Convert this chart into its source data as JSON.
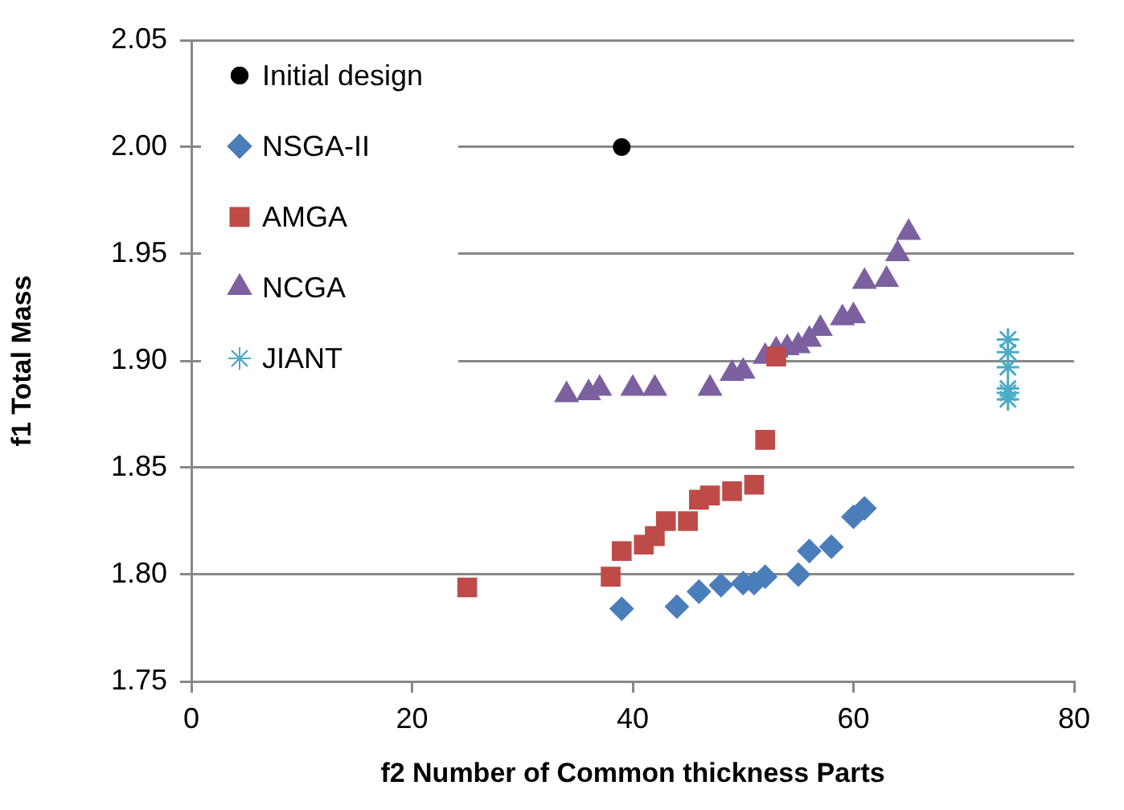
{
  "chart_data": {
    "type": "scatter",
    "xlabel": "f2 Number of Common thickness Parts",
    "ylabel": "f1 Total Mass",
    "xlim": [
      0,
      80
    ],
    "xticks": [
      0,
      20,
      40,
      60,
      80
    ],
    "ylim": [
      1.75,
      2.05
    ],
    "yticks": [
      {
        "value": 1.75,
        "label": "1.75"
      },
      {
        "value": 1.8,
        "label": "1.80"
      },
      {
        "value": 1.85,
        "label": "1.85"
      },
      {
        "value": 1.9,
        "label": "1.90"
      },
      {
        "value": 1.95,
        "label": "1.95"
      },
      {
        "value": 2.0,
        "label": "2.00"
      },
      {
        "value": 2.05,
        "label": "2.05"
      }
    ],
    "grid": "y",
    "legend": "top left",
    "series": [
      {
        "name": "Initial design",
        "color": "#000000",
        "marker": "circle",
        "x": [
          39
        ],
        "values": [
          2.0
        ]
      },
      {
        "name": "NSGA-II",
        "color": "#4a7ebb",
        "marker": "diamond",
        "x": [
          39,
          44,
          46,
          48,
          50,
          51,
          52,
          55,
          56,
          58,
          60,
          61
        ],
        "values": [
          1.784,
          1.785,
          1.792,
          1.795,
          1.796,
          1.796,
          1.799,
          1.8,
          1.811,
          1.813,
          1.827,
          1.831
        ]
      },
      {
        "name": "AMGA",
        "color": "#be4b48",
        "marker": "square",
        "x": [
          25,
          38,
          39,
          41,
          42,
          43,
          45,
          46,
          47,
          49,
          51,
          52,
          53
        ],
        "values": [
          1.794,
          1.799,
          1.811,
          1.814,
          1.818,
          1.825,
          1.825,
          1.835,
          1.837,
          1.839,
          1.842,
          1.863,
          1.902
        ]
      },
      {
        "name": "NCGA",
        "color": "#7d60a0",
        "marker": "triangle",
        "x": [
          34,
          36,
          37,
          40,
          42,
          47,
          49,
          50,
          52,
          53,
          54,
          55,
          56,
          57,
          59,
          60,
          61,
          63,
          64,
          65
        ],
        "values": [
          1.884,
          1.885,
          1.887,
          1.887,
          1.887,
          1.887,
          1.894,
          1.895,
          1.902,
          1.905,
          1.906,
          1.907,
          1.91,
          1.915,
          1.92,
          1.921,
          1.937,
          1.938,
          1.95,
          1.96
        ]
      },
      {
        "name": "JIANT",
        "color": "#4bacc6",
        "marker": "cross",
        "x": [
          74,
          74,
          74,
          74,
          74,
          74
        ],
        "values": [
          1.882,
          1.885,
          1.887,
          1.897,
          1.904,
          1.91
        ]
      }
    ]
  }
}
